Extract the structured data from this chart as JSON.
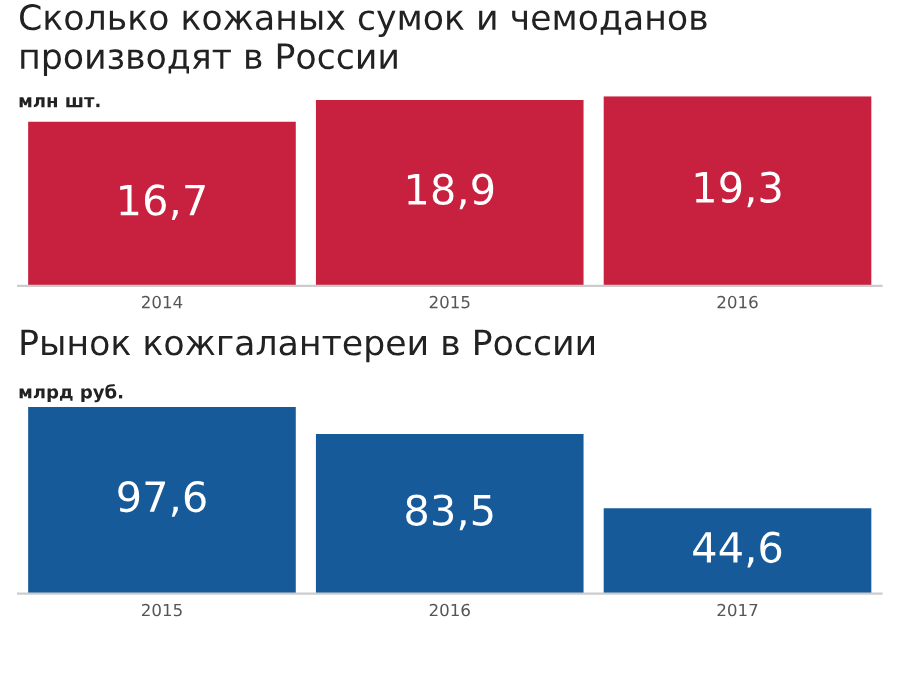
{
  "chart_data": [
    {
      "type": "bar",
      "title": "Сколько кожаных сумок и чемоданов производят в России",
      "subtitle": "млн шт.",
      "categories": [
        "2014",
        "2015",
        "2016"
      ],
      "values": [
        16.7,
        18.9,
        19.3
      ],
      "value_labels": [
        "16,7",
        "18,9",
        "19,3"
      ],
      "color": "#c8203f",
      "tick_labels": "x",
      "grid": false,
      "legend": false
    },
    {
      "type": "bar",
      "title": "Рынок кожгалантереи в России",
      "subtitle": "млрд руб.",
      "categories": [
        "2015",
        "2016",
        "2017"
      ],
      "values": [
        97.6,
        83.5,
        44.6
      ],
      "value_labels": [
        "97,6",
        "83,5",
        "44,6"
      ],
      "color": "#175a9a",
      "tick_labels": "x",
      "grid": false,
      "legend": false
    }
  ]
}
